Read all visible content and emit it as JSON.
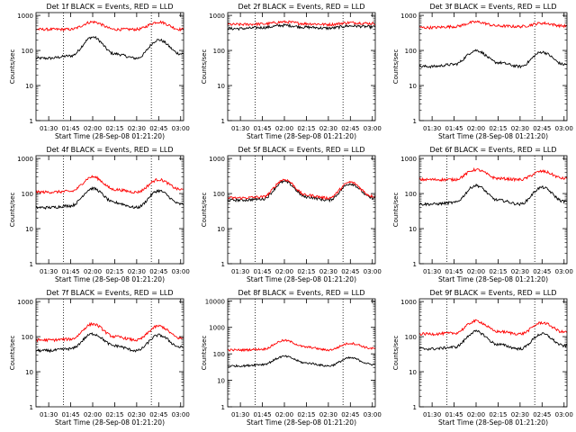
{
  "figure": {
    "common": {
      "xlabel": "Start Time (28-Sep-08 01:21:20)",
      "ylabel": "Counts/sec",
      "x_tick_labels": [
        "01:30",
        "01:45",
        "02:00",
        "02:15",
        "02:30",
        "02:45",
        "03:00"
      ],
      "y_tick_labels": [
        "1",
        "10",
        "100",
        "1000"
      ],
      "y_scale": "log",
      "series_colors": {
        "events": "#000000",
        "lld": "#ff0000"
      }
    }
  },
  "chart_data": [
    {
      "type": "line",
      "title": "Det 1f BLACK = Events, RED = LLD",
      "xlabel": "Start Time (28-Sep-08 01:21:20)",
      "ylabel": "Counts/sec",
      "y_scale": "log",
      "ylim": [
        1,
        1200
      ],
      "x": [
        "01:30",
        "01:45",
        "02:00",
        "02:15",
        "02:30",
        "02:45",
        "03:00"
      ],
      "dotted_markers": [
        "01:40",
        "02:40"
      ],
      "series": [
        {
          "name": "Events",
          "values": [
            60,
            70,
            240,
            80,
            60,
            200,
            80
          ]
        },
        {
          "name": "LLD",
          "values": [
            400,
            400,
            650,
            400,
            400,
            650,
            400
          ]
        }
      ]
    },
    {
      "type": "line",
      "title": "Det 2f BLACK = Events, RED = LLD",
      "xlabel": "Start Time (28-Sep-08 01:21:20)",
      "ylabel": "Counts/sec",
      "y_scale": "log",
      "ylim": [
        1,
        1200
      ],
      "x": [
        "01:30",
        "01:45",
        "02:00",
        "02:15",
        "02:30",
        "02:45",
        "03:00"
      ],
      "dotted_markers": [
        "01:40",
        "02:40"
      ],
      "series": [
        {
          "name": "Events",
          "values": [
            420,
            450,
            520,
            460,
            430,
            500,
            470
          ]
        },
        {
          "name": "LLD",
          "values": [
            550,
            570,
            650,
            580,
            550,
            620,
            590
          ]
        }
      ]
    },
    {
      "type": "line",
      "title": "Det 3f BLACK = Events, RED = LLD",
      "xlabel": "Start Time (28-Sep-08 01:21:20)",
      "ylabel": "Counts/sec",
      "y_scale": "log",
      "ylim": [
        1,
        1200
      ],
      "x": [
        "01:30",
        "01:45",
        "02:00",
        "02:15",
        "02:30",
        "02:45",
        "03:00"
      ],
      "dotted_markers": [
        "02:40"
      ],
      "series": [
        {
          "name": "Events",
          "values": [
            35,
            40,
            100,
            45,
            35,
            90,
            40
          ]
        },
        {
          "name": "LLD",
          "values": [
            450,
            480,
            650,
            500,
            480,
            600,
            500
          ]
        }
      ]
    },
    {
      "type": "line",
      "title": "Det 4f BLACK = Events, RED = LLD",
      "xlabel": "Start Time (28-Sep-08 01:21:20)",
      "ylabel": "Counts/sec",
      "y_scale": "log",
      "ylim": [
        1,
        1200
      ],
      "x": [
        "01:30",
        "01:45",
        "02:00",
        "02:15",
        "02:30",
        "02:45",
        "03:00"
      ],
      "dotted_markers": [
        "01:40",
        "02:40"
      ],
      "series": [
        {
          "name": "Events",
          "values": [
            40,
            45,
            140,
            55,
            40,
            120,
            50
          ]
        },
        {
          "name": "LLD",
          "values": [
            110,
            115,
            300,
            130,
            110,
            250,
            130
          ]
        }
      ]
    },
    {
      "type": "line",
      "title": "Det 5f BLACK = Events, RED = LLD",
      "xlabel": "Start Time (28-Sep-08 01:21:20)",
      "ylabel": "Counts/sec",
      "y_scale": "log",
      "ylim": [
        1,
        1200
      ],
      "x": [
        "01:30",
        "01:45",
        "02:00",
        "02:15",
        "02:30",
        "02:45",
        "03:00"
      ],
      "dotted_markers": [
        "01:40",
        "02:40"
      ],
      "series": [
        {
          "name": "Events",
          "values": [
            65,
            70,
            220,
            80,
            65,
            190,
            75
          ]
        },
        {
          "name": "LLD",
          "values": [
            75,
            80,
            250,
            90,
            75,
            210,
            85
          ]
        }
      ]
    },
    {
      "type": "line",
      "title": "Det 6f BLACK = Events, RED = LLD",
      "xlabel": "Start Time (28-Sep-08 01:21:20)",
      "ylabel": "Counts/sec",
      "y_scale": "log",
      "ylim": [
        1,
        1200
      ],
      "x": [
        "01:30",
        "01:45",
        "02:00",
        "02:15",
        "02:30",
        "02:45",
        "03:00"
      ],
      "dotted_markers": [
        "01:40",
        "02:40"
      ],
      "series": [
        {
          "name": "Events",
          "values": [
            50,
            55,
            170,
            65,
            50,
            150,
            60
          ]
        },
        {
          "name": "LLD",
          "values": [
            250,
            250,
            480,
            270,
            250,
            430,
            270
          ]
        }
      ]
    },
    {
      "type": "line",
      "title": "Det 7f BLACK = Events, RED = LLD",
      "xlabel": "Start Time (28-Sep-08 01:21:20)",
      "ylabel": "Counts/sec",
      "y_scale": "log",
      "ylim": [
        1,
        1200
      ],
      "x": [
        "01:30",
        "01:45",
        "02:00",
        "02:15",
        "02:30",
        "02:45",
        "03:00"
      ],
      "dotted_markers": [
        "01:40",
        "02:40"
      ],
      "series": [
        {
          "name": "Events",
          "values": [
            40,
            45,
            120,
            55,
            40,
            110,
            50
          ]
        },
        {
          "name": "LLD",
          "values": [
            80,
            85,
            230,
            100,
            80,
            200,
            90
          ]
        }
      ]
    },
    {
      "type": "line",
      "title": "Det 8f BLACK = Events, RED = LLD",
      "xlabel": "Start Time (28-Sep-08 01:21:20)",
      "ylabel": "Counts/sec",
      "y_scale": "log",
      "ylim": [
        1,
        12000
      ],
      "x": [
        "01:30",
        "01:45",
        "02:00",
        "02:15",
        "02:30",
        "02:45",
        "03:00"
      ],
      "dotted_markers": [
        "01:40",
        "02:40"
      ],
      "series": [
        {
          "name": "Events",
          "values": [
            35,
            40,
            80,
            45,
            35,
            70,
            40
          ]
        },
        {
          "name": "LLD",
          "values": [
            140,
            150,
            320,
            180,
            140,
            250,
            160
          ]
        }
      ]
    },
    {
      "type": "line",
      "title": "Det 9f BLACK = Events, RED = LLD",
      "xlabel": "Start Time (28-Sep-08 01:21:20)",
      "ylabel": "Counts/sec",
      "y_scale": "log",
      "ylim": [
        1,
        1200
      ],
      "x": [
        "01:30",
        "01:45",
        "02:00",
        "02:15",
        "02:30",
        "02:45",
        "03:00"
      ],
      "dotted_markers": [
        "01:40",
        "02:40"
      ],
      "series": [
        {
          "name": "Events",
          "values": [
            45,
            50,
            140,
            60,
            45,
            120,
            55
          ]
        },
        {
          "name": "LLD",
          "values": [
            120,
            125,
            280,
            140,
            120,
            250,
            135
          ]
        }
      ]
    }
  ]
}
